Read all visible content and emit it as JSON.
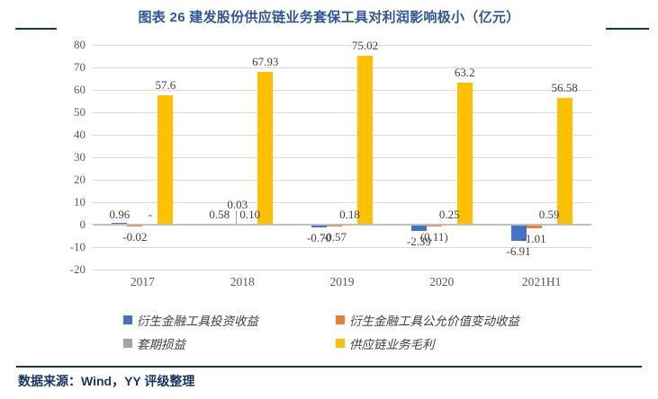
{
  "header": {
    "title": "图表 26 建发股份供应链业务套保工具对利润影响极小（亿元）"
  },
  "footer": {
    "source": "数据来源：Wind，YY 评级整理"
  },
  "colors": {
    "title_blue": "#2F5597",
    "accent_navy": "#17365D",
    "gridline": "#D9D9D9",
    "axis_text": "#595959",
    "series_blue": "#4472C4",
    "series_orange": "#ED7D31",
    "series_gray": "#A5A5A5",
    "series_yellow": "#FFC000"
  },
  "chart_data": {
    "type": "bar",
    "title": "图表 26 建发股份供应链业务套保工具对利润影响极小（亿元）",
    "categories": [
      "2017",
      "2018",
      "2019",
      "2020",
      "2021H1"
    ],
    "series": [
      {
        "name": "衍生金融工具投资收益",
        "color": "#4472C4",
        "values": [
          0.96,
          0.58,
          -0.7,
          -2.39,
          -6.91
        ],
        "labels": [
          "0.96",
          "0.58",
          "-0.70",
          "-2.39",
          "-6.91"
        ]
      },
      {
        "name": "衍生金融工具公允价值变动收益",
        "color": "#ED7D31",
        "values": [
          -0.02,
          0.03,
          -0.57,
          -0.11,
          -1.01
        ],
        "labels": [
          "-0.02",
          "0.03",
          "-0.57",
          "(0.11)",
          "-1.01"
        ]
      },
      {
        "name": "套期损益",
        "color": "#A5A5A5",
        "values": [
          null,
          0.1,
          0.18,
          0.25,
          0.59
        ],
        "labels": [
          "-",
          "0.10",
          "0.18",
          "0.25",
          "0.59"
        ]
      },
      {
        "name": "供应链业务毛利",
        "color": "#FFC000",
        "values": [
          57.6,
          67.93,
          75.02,
          63.2,
          56.58
        ],
        "labels": [
          "57.6",
          "67.93",
          "75.02",
          "63.2",
          "56.58"
        ]
      }
    ],
    "y_ticks": [
      80,
      70,
      60,
      50,
      40,
      30,
      20,
      10,
      0,
      -10,
      -20
    ],
    "ylim": [
      -20,
      80
    ],
    "xlabel": "",
    "ylabel": "",
    "grid": true,
    "legend_position": "bottom",
    "label_adjust": {
      "1-1": {
        "dx": 3,
        "dy": -11,
        "leader": true
      }
    }
  }
}
